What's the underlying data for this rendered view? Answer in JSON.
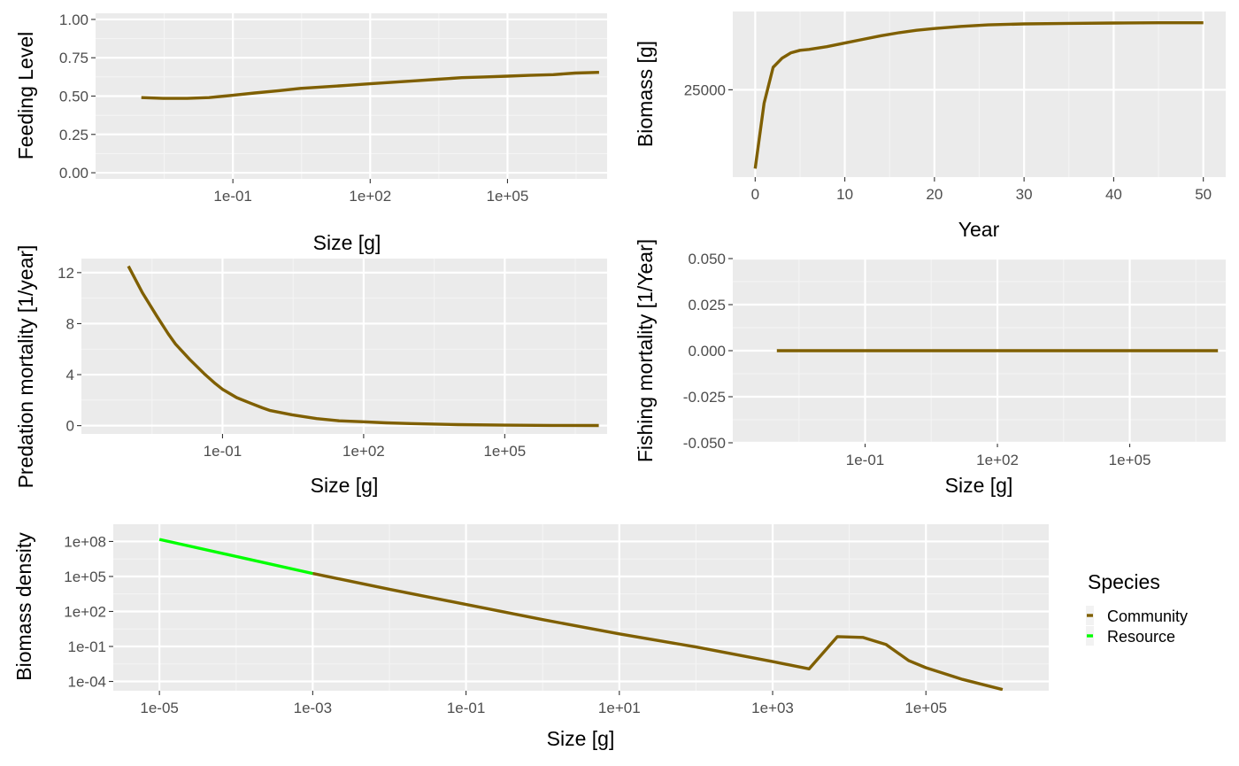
{
  "colors": {
    "panel_bg": "#ebebeb",
    "grid_major": "#ffffff",
    "grid_minor": "#f4f4f4",
    "tick_text": "#4d4d4d",
    "community": "#7f5f00",
    "resource": "#00ff00"
  },
  "legend": {
    "title": "Species",
    "entries": [
      {
        "label": "Community",
        "color": "#7f5f00"
      },
      {
        "label": "Resource",
        "color": "#00ff00"
      }
    ]
  },
  "chart_data": [
    {
      "id": "feeding",
      "type": "line",
      "xlabel": "Size [g]",
      "ylabel": "Feeding Level",
      "x_scale": "log10",
      "xlim": [
        0.0001,
        15000000
      ],
      "ylim": [
        -0.04,
        1.04
      ],
      "x_ticks": [
        {
          "v": 0.1,
          "label": "1e-01"
        },
        {
          "v": 100,
          "label": "1e+02"
        },
        {
          "v": 100000,
          "label": "1e+05"
        }
      ],
      "y_ticks": [
        {
          "v": 0,
          "label": "0.00"
        },
        {
          "v": 0.25,
          "label": "0.25"
        },
        {
          "v": 0.5,
          "label": "0.50"
        },
        {
          "v": 0.75,
          "label": "0.75"
        },
        {
          "v": 1,
          "label": "1.00"
        }
      ],
      "series": [
        {
          "color": "#7f5f00",
          "x": [
            0.001,
            0.003,
            0.01,
            0.03,
            0.1,
            0.3,
            1,
            3,
            10,
            30,
            100,
            300,
            1000,
            3000,
            10000,
            30000,
            100000,
            300000,
            1000000,
            3000000,
            10000000
          ],
          "y": [
            0.49,
            0.485,
            0.485,
            0.49,
            0.505,
            0.52,
            0.535,
            0.55,
            0.56,
            0.57,
            0.58,
            0.59,
            0.6,
            0.61,
            0.62,
            0.625,
            0.63,
            0.635,
            0.64,
            0.65,
            0.655
          ]
        }
      ]
    },
    {
      "id": "biomass",
      "type": "line",
      "xlabel": "Year",
      "ylabel": "Biomass [g]",
      "x_scale": "linear",
      "xlim": [
        -2.5,
        52.5
      ],
      "ylim": [
        10600,
        37900
      ],
      "x_ticks": [
        {
          "v": 0,
          "label": "0"
        },
        {
          "v": 10,
          "label": "10"
        },
        {
          "v": 20,
          "label": "20"
        },
        {
          "v": 30,
          "label": "30"
        },
        {
          "v": 40,
          "label": "40"
        },
        {
          "v": 50,
          "label": "50"
        }
      ],
      "y_ticks": [
        {
          "v": 25000,
          "label": "25000"
        }
      ],
      "series": [
        {
          "color": "#7f5f00",
          "x": [
            0,
            1,
            2,
            3,
            4,
            5,
            6,
            8,
            10,
            12,
            14,
            16,
            18,
            20,
            23,
            26,
            30,
            35,
            40,
            45,
            50
          ],
          "y": [
            12000,
            22800,
            28700,
            30200,
            31100,
            31500,
            31650,
            32100,
            32700,
            33300,
            33900,
            34400,
            34800,
            35100,
            35450,
            35700,
            35850,
            35950,
            36000,
            36050,
            36050
          ]
        }
      ]
    },
    {
      "id": "predation",
      "type": "line",
      "xlabel": "Size [g]",
      "ylabel": "Predation mortality [1/year]",
      "x_scale": "log10",
      "xlim": [
        0.0001,
        15000000
      ],
      "ylim": [
        -0.65,
        13.1
      ],
      "x_ticks": [
        {
          "v": 0.1,
          "label": "1e-01"
        },
        {
          "v": 100,
          "label": "1e+02"
        },
        {
          "v": 100000,
          "label": "1e+05"
        }
      ],
      "y_ticks": [
        {
          "v": 0,
          "label": "0"
        },
        {
          "v": 4,
          "label": "4"
        },
        {
          "v": 8,
          "label": "8"
        },
        {
          "v": 12,
          "label": "12"
        }
      ],
      "series": [
        {
          "color": "#7f5f00",
          "x": [
            0.001,
            0.002,
            0.004,
            0.007,
            0.01,
            0.02,
            0.04,
            0.07,
            0.1,
            0.2,
            0.4,
            0.7,
            1,
            3,
            10,
            30,
            100,
            300,
            1000,
            10000,
            100000,
            1000000,
            10000000
          ],
          "y": [
            12.5,
            10.4,
            8.6,
            7.2,
            6.4,
            5.2,
            4.1,
            3.3,
            2.85,
            2.2,
            1.75,
            1.4,
            1.2,
            0.85,
            0.55,
            0.38,
            0.3,
            0.22,
            0.16,
            0.08,
            0.04,
            0.02,
            0.01
          ]
        }
      ]
    },
    {
      "id": "fishing",
      "type": "line",
      "xlabel": "Size [g]",
      "ylabel": "Fishing mortality [1/Year]",
      "x_scale": "log10",
      "xlim": [
        0.0001,
        15000000
      ],
      "ylim": [
        -0.05,
        0.05
      ],
      "x_ticks": [
        {
          "v": 0.1,
          "label": "1e-01"
        },
        {
          "v": 100,
          "label": "1e+02"
        },
        {
          "v": 100000,
          "label": "1e+05"
        }
      ],
      "y_ticks": [
        {
          "v": -0.05,
          "label": "-0.050"
        },
        {
          "v": -0.025,
          "label": "-0.025"
        },
        {
          "v": 0,
          "label": "0.000"
        },
        {
          "v": 0.025,
          "label": "0.025"
        },
        {
          "v": 0.05,
          "label": "0.050"
        }
      ],
      "series": [
        {
          "color": "#7f5f00",
          "x": [
            0.001,
            10000000
          ],
          "y": [
            0,
            0
          ]
        }
      ]
    },
    {
      "id": "density",
      "type": "line",
      "xlabel": "Size [g]",
      "ylabel": "Biomass density",
      "x_scale": "log10",
      "y_scale": "log10",
      "xlim": [
        2.5e-06,
        4000000
      ],
      "ylim": [
        1.6e-05,
        3000000000
      ],
      "x_ticks": [
        {
          "v": 1e-05,
          "label": "1e-05"
        },
        {
          "v": 0.001,
          "label": "1e-03"
        },
        {
          "v": 0.1,
          "label": "1e-01"
        },
        {
          "v": 10,
          "label": "1e+01"
        },
        {
          "v": 1000,
          "label": "1e+03"
        },
        {
          "v": 100000,
          "label": "1e+05"
        }
      ],
      "y_ticks": [
        {
          "v": 0.0001,
          "label": "1e-04"
        },
        {
          "v": 0.1,
          "label": "1e-01"
        },
        {
          "v": 100,
          "label": "1e+02"
        },
        {
          "v": 100000,
          "label": "1e+05"
        },
        {
          "v": 100000000,
          "label": "1e+08"
        }
      ],
      "series": [
        {
          "name": "Resource",
          "color": "#00ff00",
          "x": [
            1e-05,
            0.001
          ],
          "y": [
            150000000,
            180000
          ]
        },
        {
          "name": "Community",
          "color": "#7f5f00",
          "x": [
            0.001,
            0.01,
            0.1,
            1,
            10,
            100,
            1000,
            3000,
            7000,
            15000,
            30000,
            60000,
            100000,
            300000,
            1000000
          ],
          "y": [
            180000,
            8000,
            400,
            20,
            1.2,
            0.09,
            0.005,
            0.0012,
            0.7,
            0.6,
            0.15,
            0.006,
            0.0015,
            0.00015,
            2e-05
          ]
        }
      ]
    }
  ]
}
